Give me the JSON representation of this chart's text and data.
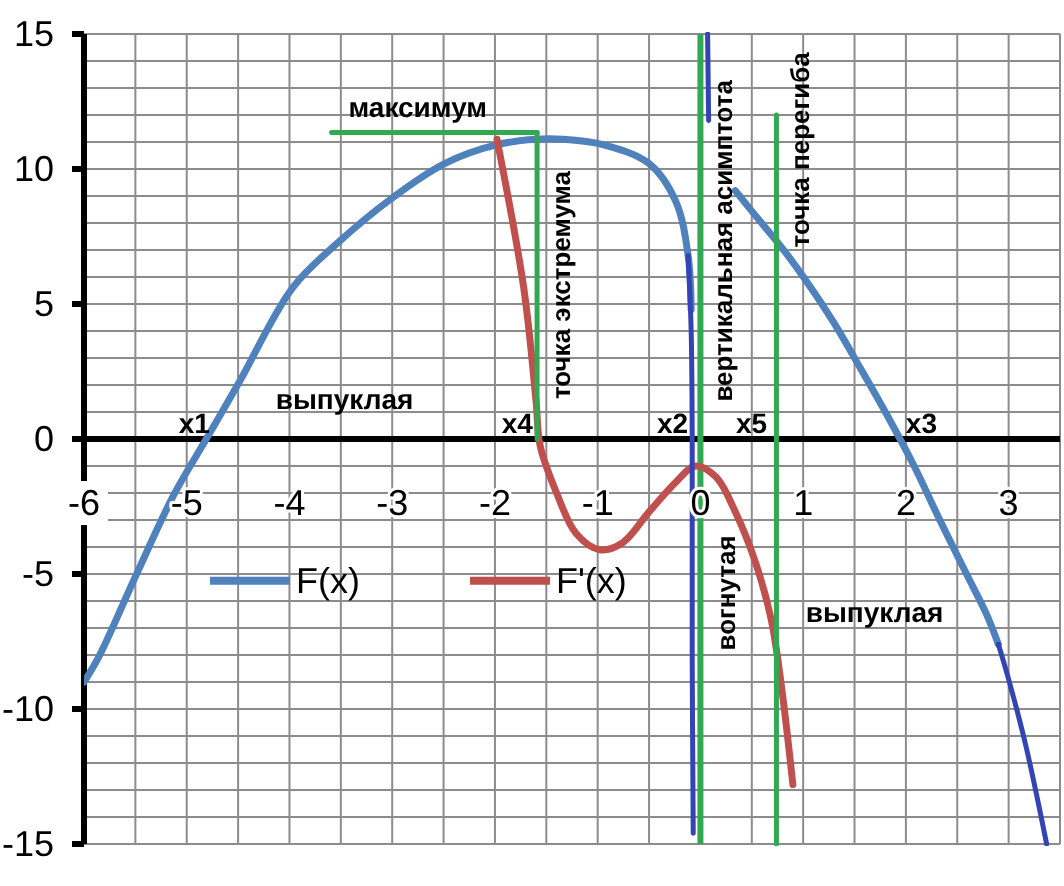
{
  "chart_data": {
    "type": "line",
    "xlim": [
      -6,
      3.5
    ],
    "ylim": [
      -15,
      15
    ],
    "xticks": [
      -6,
      {
        "value": -5.5,
        "label": null
      },
      -5,
      {
        "value": -4.5,
        "label": null
      },
      -4,
      {
        "value": -3.5,
        "label": null
      },
      -3,
      {
        "value": -2.5,
        "label": null
      },
      -2,
      {
        "value": -1.5,
        "label": null
      },
      -1,
      {
        "value": -0.5,
        "label": null
      },
      0,
      {
        "value": 0.5,
        "label": null
      },
      1,
      {
        "value": 1.5,
        "label": null
      },
      2,
      {
        "value": 2.5,
        "label": null
      },
      3,
      {
        "value": 3.5,
        "label": null
      }
    ],
    "yticks": [
      -15,
      {
        "value": -14,
        "label": null
      },
      {
        "value": -13,
        "label": null
      },
      {
        "value": -12,
        "label": null
      },
      {
        "value": -11,
        "label": null
      },
      -10,
      {
        "value": -9,
        "label": null
      },
      {
        "value": -8,
        "label": null
      },
      {
        "value": -7,
        "label": null
      },
      {
        "value": -6,
        "label": null
      },
      -5,
      {
        "value": -4,
        "label": null
      },
      {
        "value": -3,
        "label": null
      },
      {
        "value": -2,
        "label": null
      },
      {
        "value": -1,
        "label": null
      },
      0,
      {
        "value": 1,
        "label": null
      },
      {
        "value": 2,
        "label": null
      },
      {
        "value": 3,
        "label": null
      },
      {
        "value": 4,
        "label": null
      },
      5,
      {
        "value": 6,
        "label": null
      },
      {
        "value": 7,
        "label": null
      },
      {
        "value": 8,
        "label": null
      },
      {
        "value": 9,
        "label": null
      },
      10,
      {
        "value": 11,
        "label": null
      },
      {
        "value": 12,
        "label": null
      },
      {
        "value": 13,
        "label": null
      },
      {
        "value": 14,
        "label": null
      },
      15
    ],
    "grid": true,
    "legend": "bottom left",
    "series": [
      {
        "name": "F(x)",
        "color": "#4f81bd",
        "x": [
          -6,
          -5.86,
          -5.5,
          -5.13,
          -4.81,
          -4.49,
          -3.97,
          -3.52,
          -3.01,
          -2.49,
          -1.98,
          -1.6,
          -1.34,
          -0.95,
          -0.5,
          -0.24,
          -0.12,
          -0.09,
          0.1,
          0.34,
          0.53,
          0.79,
          1.04,
          1.3,
          1.56,
          1.82,
          2.08,
          2.33,
          2.59,
          2.78,
          2.9
        ],
        "values": [
          -9,
          -8.1,
          -5.1,
          -2.1,
          0,
          2.1,
          5.6,
          7.3,
          8.9,
          10.2,
          10.9,
          11.1,
          11.1,
          10.9,
          10.2,
          8.8,
          6.8,
          4.8,
          null,
          9.2,
          8.3,
          7.1,
          5.8,
          4.3,
          2.6,
          0.86,
          -1,
          -3,
          -5,
          -6.45,
          -7.6
        ]
      },
      {
        "name": "F'(x)",
        "color": "#c0504d",
        "x": [
          -1.98,
          -1.72,
          -1.6,
          -1.56,
          -1.4,
          -1.21,
          -0.98,
          -0.76,
          -0.5,
          -0.24,
          -0.05,
          0.15,
          0.34,
          0.53,
          0.69,
          0.79,
          0.9
        ],
        "values": [
          11.1,
          5.6,
          1.4,
          -0.25,
          -2,
          -3.5,
          -4.1,
          -3.85,
          -2.7,
          -1.6,
          -1,
          -1.4,
          -2.7,
          -4.5,
          -6.7,
          -9.2,
          -12.8
        ]
      },
      {
        "color": "#3344b5",
        "x": [
          -0.12,
          -0.09,
          -0.08,
          -0.08,
          -0.07
        ],
        "values": [
          6.8,
          4,
          0,
          -8,
          -14.6
        ]
      },
      {
        "color": "#3344b5",
        "x": [
          0.07,
          0.08
        ],
        "values": [
          15,
          11.8
        ]
      },
      {
        "color": "#3344b5",
        "x": [
          2.9,
          3,
          3.17,
          3.37
        ],
        "values": [
          -7.6,
          -8.9,
          -11.4,
          -15
        ]
      },
      {
        "color": "#33a852",
        "x": [
          -3.59,
          -1.59
        ],
        "values": [
          11.35,
          11.35
        ]
      },
      {
        "color": "#33a852",
        "x": [
          -1.59,
          -1.59
        ],
        "values": [
          11.35,
          0
        ]
      },
      {
        "color": "#33a852",
        "x": [
          0.74,
          0.74
        ],
        "values": [
          12,
          -15
        ]
      }
    ],
    "ref_lines": [
      {
        "axis": "x",
        "value": 0,
        "label": "вертикальная асимптота",
        "color": "#33a852"
      }
    ],
    "annotations": [
      "максимум",
      "выпуклая",
      "x1",
      "x4",
      "точка экстремума",
      "x2",
      "x5",
      "x3",
      "точка перегиба",
      "вогнутая",
      "выпуклая"
    ]
  }
}
